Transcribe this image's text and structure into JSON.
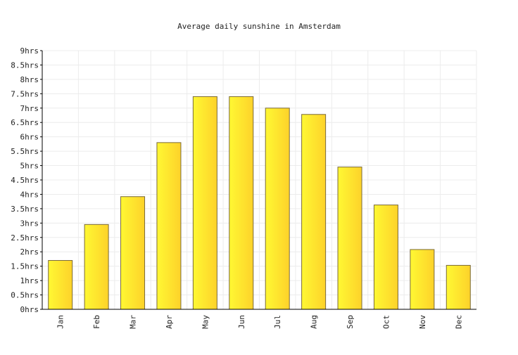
{
  "chart_data": {
    "type": "bar",
    "title": "Average daily sunshine in Amsterdam",
    "xlabel": "",
    "ylabel": "",
    "categories": [
      "Jan",
      "Feb",
      "Mar",
      "Apr",
      "May",
      "Jun",
      "Jul",
      "Aug",
      "Sep",
      "Oct",
      "Nov",
      "Dec"
    ],
    "values": [
      1.7,
      2.95,
      3.92,
      5.8,
      7.4,
      7.4,
      7.0,
      6.78,
      4.95,
      3.63,
      2.08,
      1.53
    ],
    "ylim": [
      0,
      9
    ],
    "yticks": [
      {
        "value": 0,
        "label": "0hrs"
      },
      {
        "value": 0.5,
        "label": "0.5hrs"
      },
      {
        "value": 1,
        "label": "1hrs"
      },
      {
        "value": 1.5,
        "label": "1.5hrs"
      },
      {
        "value": 2,
        "label": "2hrs"
      },
      {
        "value": 2.5,
        "label": "2.5hrs"
      },
      {
        "value": 3,
        "label": "3hrs"
      },
      {
        "value": 3.5,
        "label": "3.5hrs"
      },
      {
        "value": 4,
        "label": "4hrs"
      },
      {
        "value": 4.5,
        "label": "4.5hrs"
      },
      {
        "value": 5,
        "label": "5hrs"
      },
      {
        "value": 5.5,
        "label": "5.5hrs"
      },
      {
        "value": 6,
        "label": "6hrs"
      },
      {
        "value": 6.5,
        "label": "6.5hrs"
      },
      {
        "value": 7,
        "label": "7hrs"
      },
      {
        "value": 7.5,
        "label": "7.5hrs"
      },
      {
        "value": 8,
        "label": "8hrs"
      },
      {
        "value": 8.5,
        "label": "8.5hrs"
      },
      {
        "value": 9,
        "label": "9hrs"
      }
    ],
    "grid": true,
    "legend": "none",
    "bar_color_light": "#fff833",
    "bar_color_dark": "#fdd22a",
    "bar_border_color": "#7a6a3a"
  }
}
